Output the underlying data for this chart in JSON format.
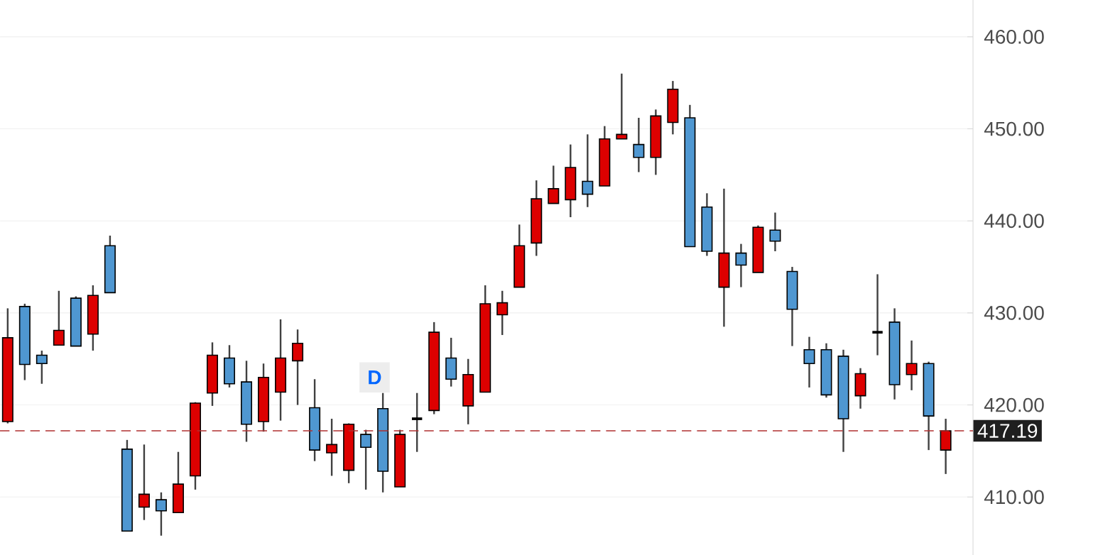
{
  "chart_data": {
    "type": "candlestick",
    "categories": [
      null,
      null,
      null,
      null,
      null,
      null,
      null,
      null,
      null,
      null,
      null,
      null,
      null,
      null,
      null,
      null,
      null,
      null,
      null,
      null,
      null,
      null,
      null,
      null,
      null,
      null,
      null,
      null,
      null,
      null,
      null,
      null,
      null,
      null,
      null,
      null,
      null,
      null,
      null,
      null,
      null,
      null,
      null,
      null,
      null,
      null,
      null,
      null,
      null,
      null,
      null,
      null,
      null,
      null,
      null,
      null
    ],
    "ohlc": [
      [
        418.2,
        430.5,
        418.0,
        427.3
      ],
      [
        430.7,
        431.0,
        422.7,
        424.4
      ],
      [
        425.4,
        425.9,
        422.3,
        424.5
      ],
      [
        426.5,
        432.4,
        426.5,
        428.1
      ],
      [
        431.6,
        431.8,
        426.4,
        426.4
      ],
      [
        427.7,
        433.0,
        425.9,
        431.9
      ],
      [
        437.3,
        438.4,
        432.2,
        432.2
      ],
      [
        415.2,
        416.2,
        406.3,
        406.3
      ],
      [
        408.9,
        415.7,
        407.5,
        410.3
      ],
      [
        409.7,
        410.5,
        405.8,
        408.5
      ],
      [
        408.3,
        414.9,
        408.3,
        411.4
      ],
      [
        412.3,
        420.3,
        410.8,
        420.2
      ],
      [
        421.3,
        426.8,
        419.9,
        425.4
      ],
      [
        425.1,
        426.5,
        421.9,
        422.3
      ],
      [
        422.5,
        424.8,
        416.0,
        417.9
      ],
      [
        418.2,
        424.5,
        417.1,
        423.0
      ],
      [
        421.4,
        429.3,
        418.3,
        425.1
      ],
      [
        424.8,
        428.2,
        420.0,
        426.7
      ],
      [
        419.7,
        422.8,
        413.9,
        415.1
      ],
      [
        414.8,
        418.5,
        412.3,
        415.7
      ],
      [
        412.9,
        418.0,
        411.5,
        417.9
      ],
      [
        416.8,
        417.3,
        410.8,
        415.4
      ],
      [
        419.6,
        421.3,
        410.5,
        412.8
      ],
      [
        411.1,
        417.3,
        411.1,
        416.8
      ],
      [
        418.5,
        421.3,
        414.9,
        418.5
      ],
      [
        419.4,
        429.0,
        419.0,
        427.9
      ],
      [
        425.1,
        427.3,
        422.0,
        422.8
      ],
      [
        419.9,
        425.0,
        417.9,
        423.3
      ],
      [
        421.4,
        433.0,
        421.4,
        431.0
      ],
      [
        429.8,
        432.4,
        427.6,
        431.1
      ],
      [
        432.8,
        439.6,
        432.8,
        437.3
      ],
      [
        437.6,
        444.4,
        436.2,
        442.4
      ],
      [
        441.9,
        446.0,
        441.9,
        443.5
      ],
      [
        442.3,
        448.3,
        440.4,
        445.8
      ],
      [
        444.3,
        449.4,
        441.5,
        442.9
      ],
      [
        443.8,
        450.3,
        443.8,
        448.9
      ],
      [
        448.9,
        456.0,
        448.9,
        449.4
      ],
      [
        448.3,
        451.2,
        445.3,
        446.9
      ],
      [
        446.9,
        452.1,
        445.0,
        451.4
      ],
      [
        450.7,
        455.2,
        449.4,
        454.3
      ],
      [
        451.2,
        452.6,
        437.2,
        437.2
      ],
      [
        441.5,
        443.0,
        436.2,
        436.7
      ],
      [
        432.8,
        443.5,
        428.5,
        436.5
      ],
      [
        436.5,
        437.5,
        432.8,
        435.2
      ],
      [
        434.4,
        439.5,
        434.4,
        439.3
      ],
      [
        439.0,
        440.9,
        436.7,
        437.8
      ],
      [
        434.5,
        435.0,
        426.4,
        430.4
      ],
      [
        426.0,
        427.4,
        421.9,
        424.5
      ],
      [
        426.0,
        426.7,
        420.8,
        421.1
      ],
      [
        425.3,
        426.0,
        414.9,
        418.5
      ],
      [
        421.0,
        424.0,
        419.6,
        423.4
      ],
      [
        427.9,
        434.2,
        425.4,
        427.9
      ],
      [
        429.0,
        430.5,
        420.6,
        422.2
      ],
      [
        423.3,
        427.0,
        421.6,
        424.5
      ],
      [
        424.5,
        424.7,
        415.1,
        418.8
      ],
      [
        415.1,
        418.5,
        412.5,
        417.19
      ]
    ],
    "colors": [
      "#dd0000",
      "#4f97d1",
      "#4f97d1",
      "#dd0000",
      "#4f97d1",
      "#dd0000",
      "#4f97d1",
      "#4f97d1",
      "#dd0000",
      "#4f97d1",
      "#dd0000",
      "#dd0000",
      "#dd0000",
      "#4f97d1",
      "#4f97d1",
      "#dd0000",
      "#dd0000",
      "#dd0000",
      "#4f97d1",
      "#dd0000",
      "#dd0000",
      "#4f97d1",
      "#4f97d1",
      "#dd0000",
      "#000000",
      "#dd0000",
      "#4f97d1",
      "#dd0000",
      "#dd0000",
      "#dd0000",
      "#dd0000",
      "#dd0000",
      "#dd0000",
      "#dd0000",
      "#4f97d1",
      "#dd0000",
      "#dd0000",
      "#4f97d1",
      "#dd0000",
      "#dd0000",
      "#4f97d1",
      "#4f97d1",
      "#dd0000",
      "#4f97d1",
      "#dd0000",
      "#4f97d1",
      "#4f97d1",
      "#4f97d1",
      "#4f97d1",
      "#4f97d1",
      "#dd0000",
      "#000000",
      "#4f97d1",
      "#dd0000",
      "#4f97d1",
      "#dd0000"
    ],
    "ylim": [
      403.7,
      464.0
    ],
    "yticks": [
      {
        "value": 410,
        "label": "410.00"
      },
      {
        "value": 420,
        "label": "420.00"
      },
      {
        "value": 430,
        "label": "430.00"
      },
      {
        "value": 440,
        "label": "440.00"
      },
      {
        "value": 450,
        "label": "450.00"
      },
      {
        "value": 460,
        "label": "460.00"
      }
    ],
    "grid": "y",
    "ref_lines": [
      {
        "axis": "y",
        "value": 417.19,
        "label": "417.19",
        "color": "#b03030",
        "line_style": "dashed"
      }
    ],
    "annotations": [
      "D"
    ]
  }
}
